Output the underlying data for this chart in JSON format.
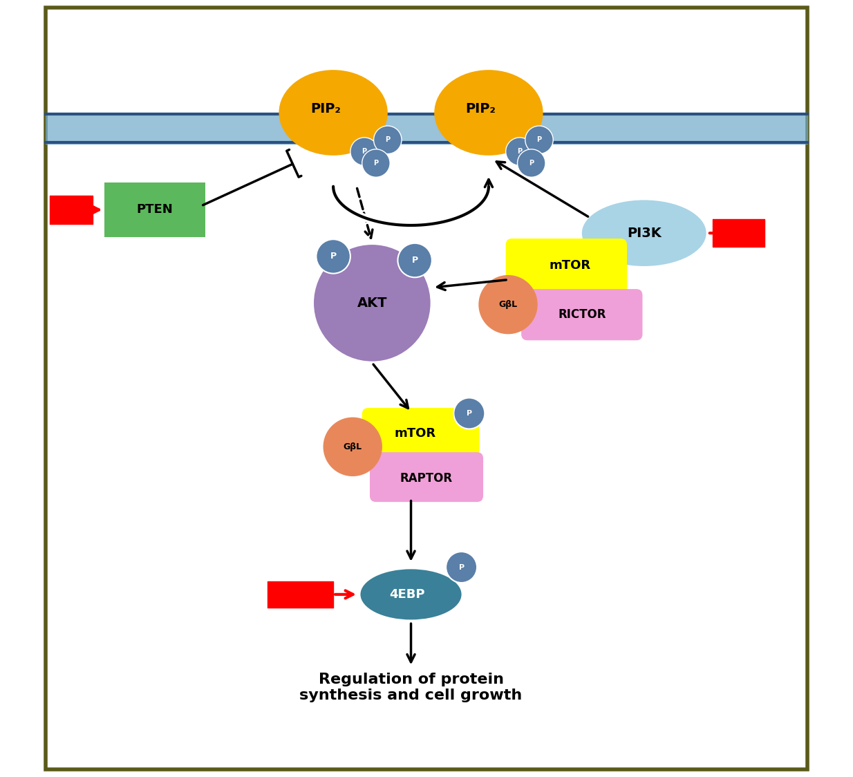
{
  "bg_color": "#ffffff",
  "border_color": "#5a5a1a",
  "membrane_color": "#2a5080",
  "membrane_fill": "#6fa8c8",
  "pip2_color": "#f5a800",
  "pip2_text": "PIP₂",
  "p_circle_color": "#5a7fa8",
  "p_text_color": "#ffffff",
  "pten_color": "#5cb85c",
  "pten_text": "PTEN",
  "pi3k_color": "#a8d4e6",
  "pi3k_text": "PI3K",
  "akt_color": "#9b7db8",
  "akt_text": "AKT",
  "mtor_color_yellow": "#ffff00",
  "mtor_text": "mTOR",
  "gbl_color": "#e8885a",
  "gbl_text": "GβL",
  "rictor_color": "#f0a0d8",
  "rictor_text": "RICTOR",
  "raptor_color": "#f0a0d8",
  "raptor_text": "RAPTOR",
  "ebp_color": "#3a8098",
  "ebp_text": "4EBP",
  "red_arrow_color": "#ff0000",
  "arrow_color": "#000000",
  "final_text": "Regulation of protein\nsynthesis and cell growth",
  "final_text_fontsize": 16
}
